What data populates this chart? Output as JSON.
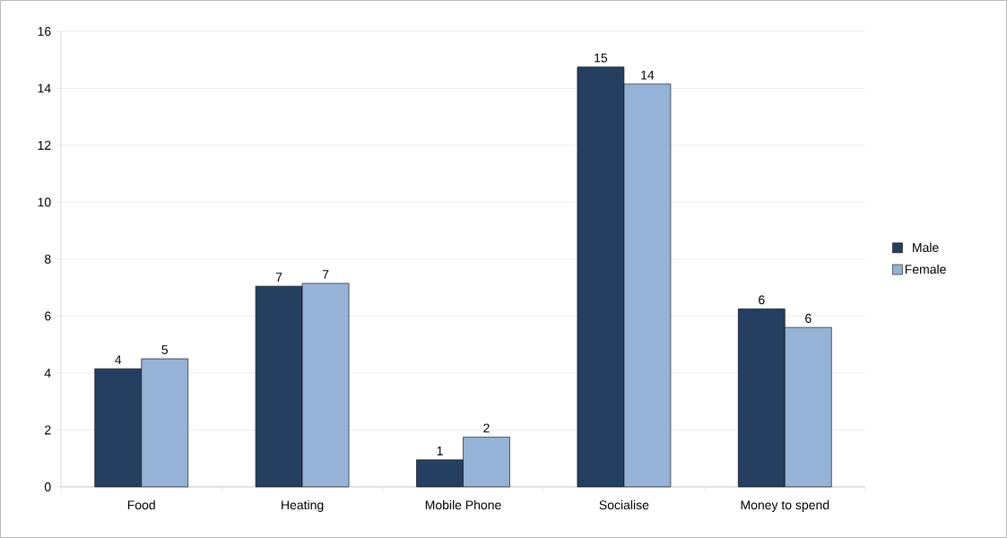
{
  "chart_data": {
    "type": "bar",
    "categories": [
      "Food",
      "Heating",
      "Mobile Phone",
      "Socialise",
      "Money to spend"
    ],
    "series": [
      {
        "name": "Male",
        "color": "#243f60",
        "values": [
          4.15,
          7.05,
          0.95,
          14.75,
          6.25
        ],
        "value_labels": [
          "4",
          "7",
          "1",
          "15",
          "6"
        ]
      },
      {
        "name": "Female",
        "color": "#95b3d7",
        "values": [
          4.5,
          7.15,
          1.75,
          14.15,
          5.6
        ],
        "value_labels": [
          "5",
          "7",
          "2",
          "14",
          "6"
        ]
      }
    ],
    "ylim": [
      0,
      16
    ],
    "yticks": [
      0,
      2,
      4,
      6,
      8,
      10,
      12,
      14,
      16
    ],
    "grid": "y",
    "legend": "right"
  }
}
